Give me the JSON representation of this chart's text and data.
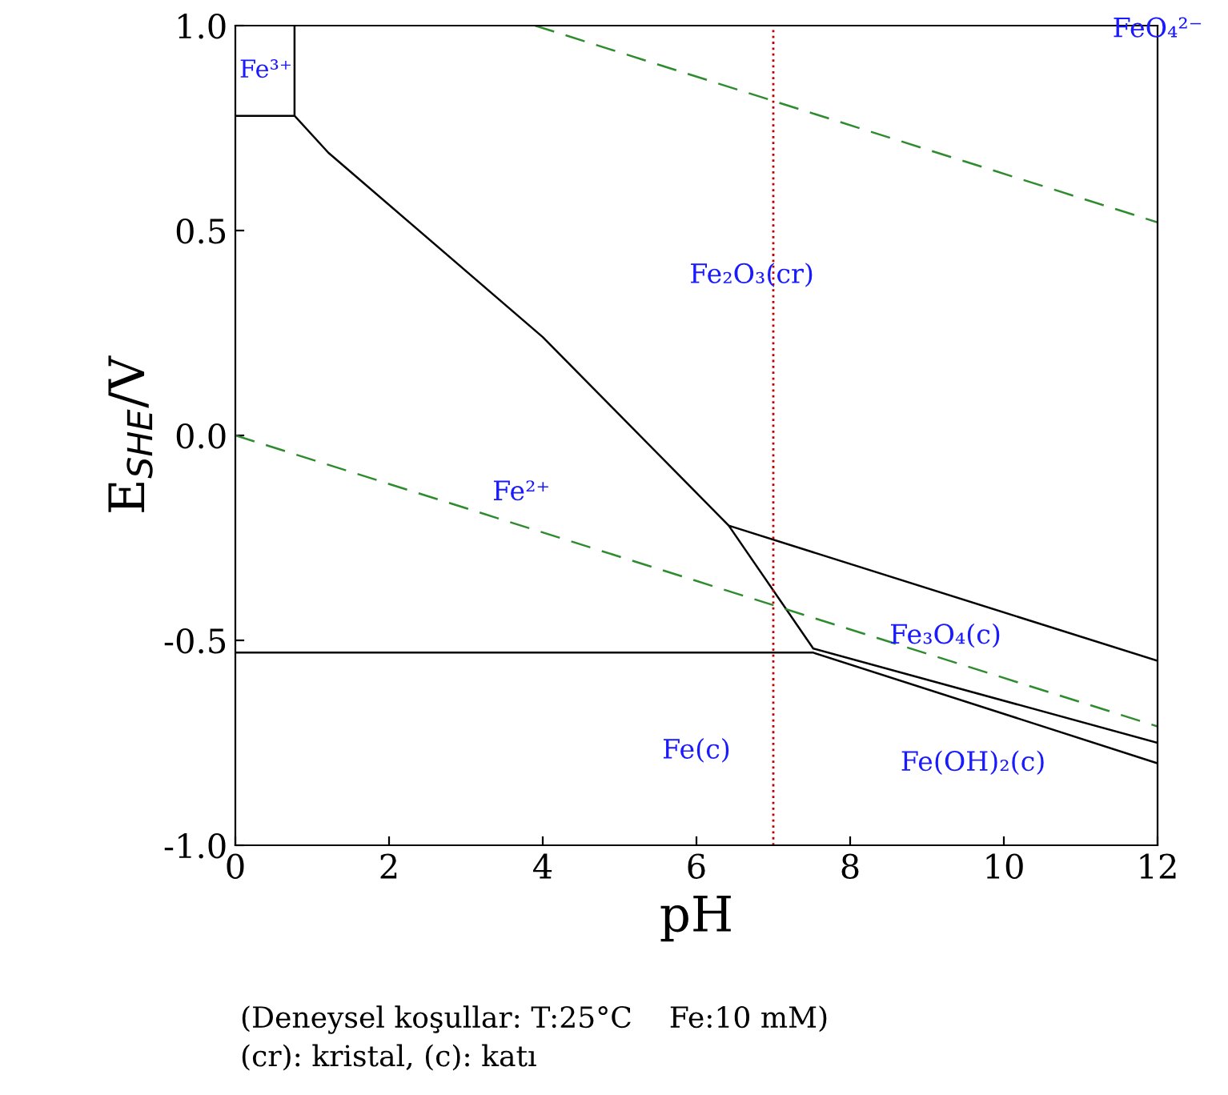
{
  "chart_data": {
    "type": "line",
    "xlabel": "pH",
    "ylabel": "E$_{SHE}$/V",
    "xlim": [
      0,
      12
    ],
    "xticks": [
      0,
      2,
      4,
      6,
      8,
      10,
      12
    ],
    "ylim": [
      -1.0,
      1.0
    ],
    "yticks": [
      {
        "value": -1.0,
        "label": "-1.0"
      },
      {
        "value": -0.5,
        "label": "-0.5"
      },
      {
        "value": 0.0,
        "label": "0.0"
      },
      {
        "value": 0.5,
        "label": "0.5"
      },
      {
        "value": 1.0,
        "label": "1.0"
      }
    ],
    "grid": false,
    "legend": false,
    "marker": "none",
    "series": [
      {
        "color": "#000000",
        "line_style": "solid",
        "x": [
          0,
          0.77,
          0.77,
          null,
          0.77,
          1.21,
          4.0,
          6.42,
          12,
          null,
          6.42,
          7.52,
          12,
          null,
          0,
          7.52,
          12
        ],
        "values": [
          0.78,
          0.78,
          1.0,
          null,
          0.78,
          0.69,
          0.24,
          -0.22,
          -0.55,
          null,
          -0.22,
          -0.52,
          -0.75,
          null,
          -0.53,
          -0.53,
          -0.8
        ]
      },
      {
        "color": "#2e8b2e",
        "line_style": "dashed",
        "x": [
          3.9,
          12,
          null,
          0,
          12
        ],
        "values": [
          1.0,
          0.52,
          null,
          0.0,
          -0.71
        ]
      }
    ],
    "ref_lines": [
      {
        "axis": "x",
        "value": 7,
        "color": "#c00000",
        "line_style": "dotted"
      }
    ],
    "annotations": [
      "Fe³⁺",
      "FeO₄²⁻",
      "Fe₂O₃(cr)",
      "Fe²⁺",
      "Fe₃O₄(c)",
      "Fe(OH)₂(c)",
      "Fe(c)",
      "(Deneysel koşullar: T:25°C    Fe:10 mM)",
      "(cr): kristal, (c): katı"
    ]
  }
}
